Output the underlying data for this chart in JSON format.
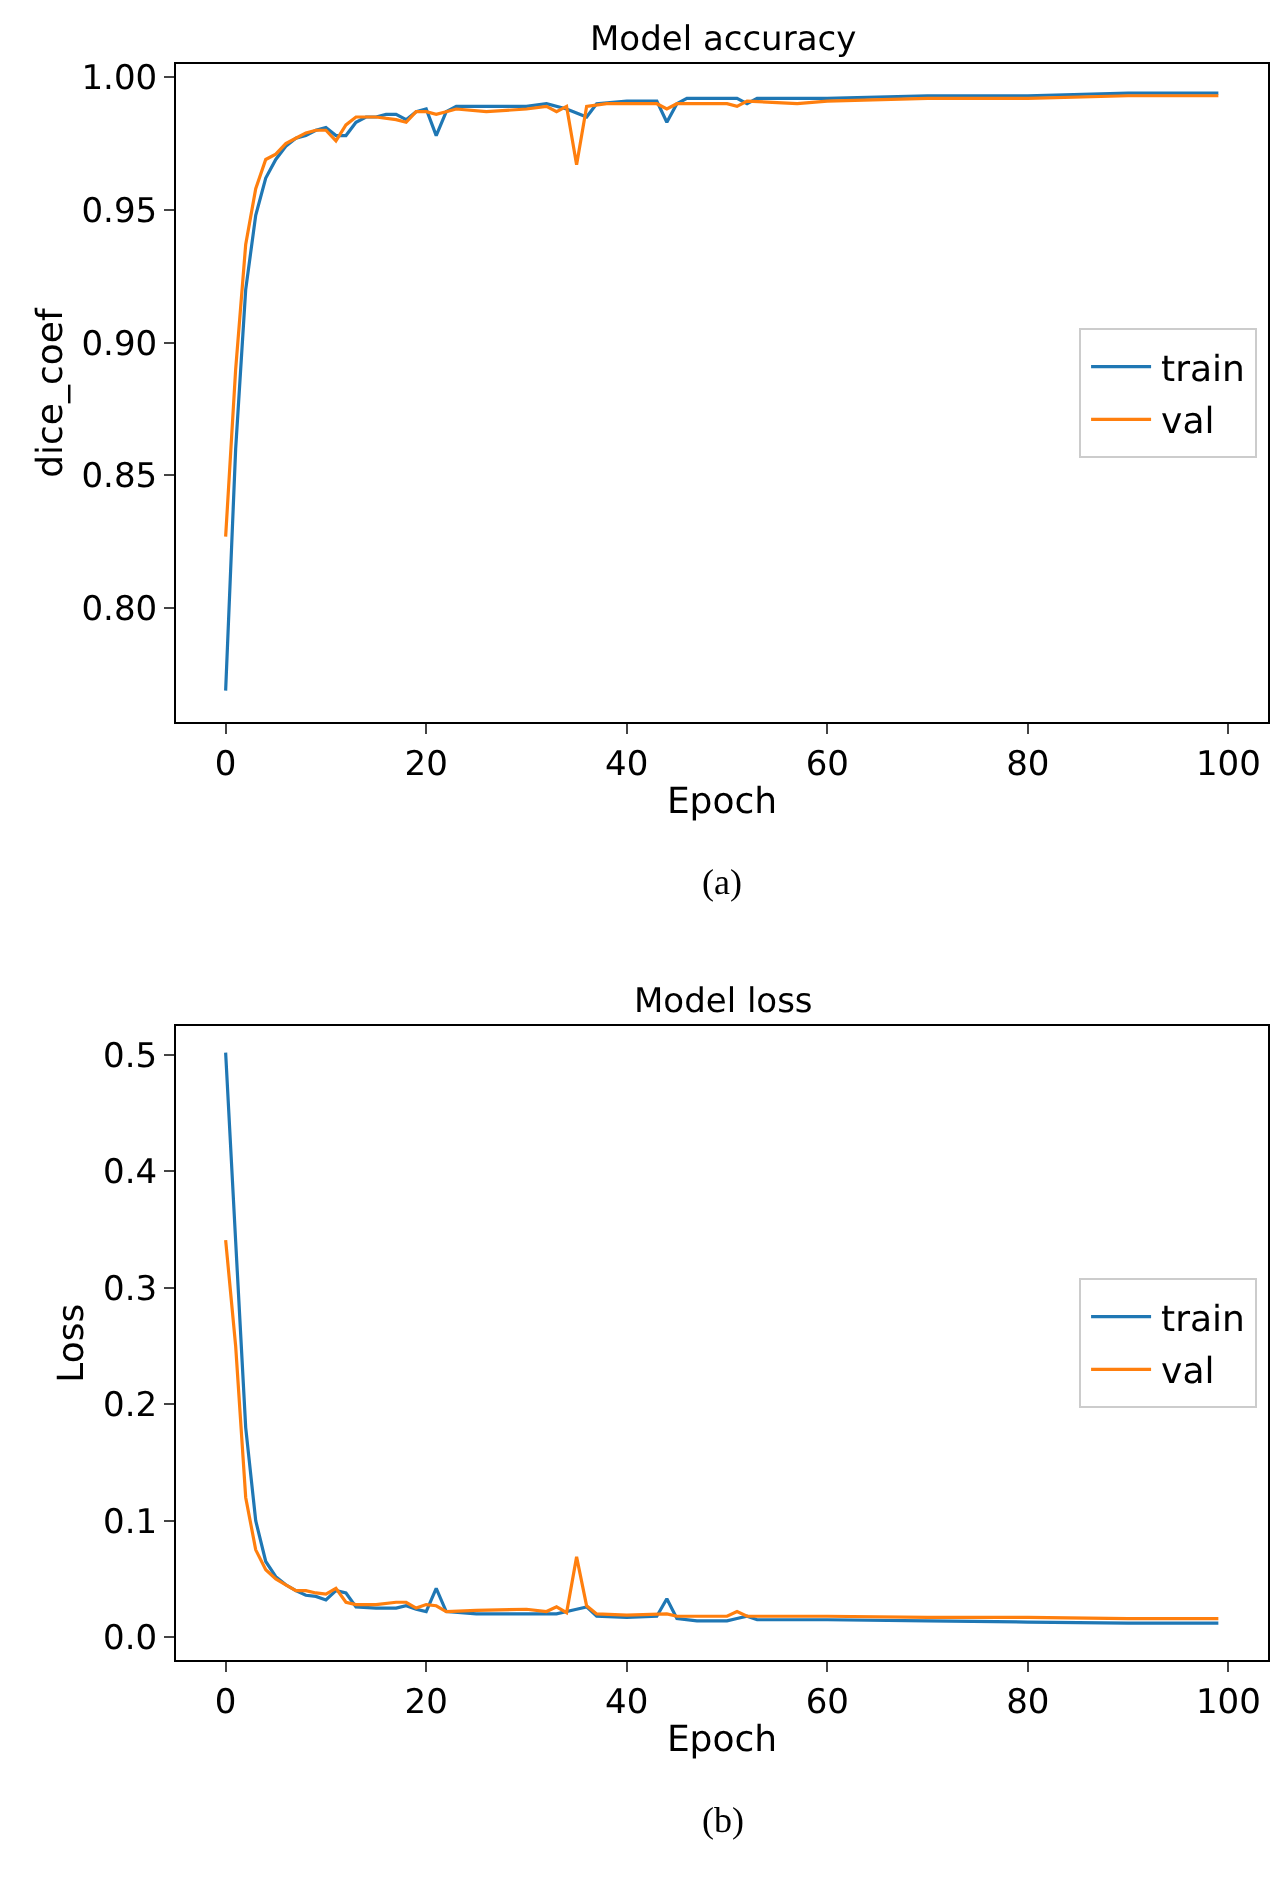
{
  "chart_data": [
    {
      "type": "line",
      "title": "Model accuracy",
      "xlabel": "Epoch",
      "ylabel": "dice_coef",
      "annotations": [
        "(a)"
      ],
      "xlim": [
        -4.95,
        103.95
      ],
      "ylim": [
        0.757,
        1.005
      ],
      "xticks": [
        0,
        20,
        40,
        60,
        80,
        100
      ],
      "yticks": [
        {
          "value": 0.8,
          "label": "0.80"
        },
        {
          "value": 0.85,
          "label": "0.85"
        },
        {
          "value": 0.9,
          "label": "0.90"
        },
        {
          "value": 0.95,
          "label": "0.95"
        },
        {
          "value": 1.0,
          "label": "1.00"
        }
      ],
      "legend": "right",
      "series": [
        {
          "name": "train",
          "color": "#1f77b4",
          "x": [
            0,
            1,
            2,
            3,
            4,
            5,
            6,
            7,
            8,
            9,
            10,
            11,
            12,
            13,
            14,
            15,
            16,
            17,
            18,
            19,
            20,
            21,
            22,
            23,
            26,
            30,
            32,
            34,
            36,
            37,
            40,
            43,
            44,
            45,
            46,
            50,
            51,
            52,
            53,
            60,
            70,
            80,
            90,
            99
          ],
          "values": [
            0.769,
            0.86,
            0.92,
            0.948,
            0.962,
            0.969,
            0.974,
            0.977,
            0.978,
            0.98,
            0.981,
            0.978,
            0.978,
            0.983,
            0.985,
            0.985,
            0.986,
            0.986,
            0.984,
            0.987,
            0.988,
            0.978,
            0.987,
            0.989,
            0.989,
            0.989,
            0.99,
            0.988,
            0.985,
            0.99,
            0.991,
            0.991,
            0.983,
            0.99,
            0.992,
            0.992,
            0.992,
            0.99,
            0.992,
            0.992,
            0.993,
            0.993,
            0.994,
            0.994
          ]
        },
        {
          "name": "val",
          "color": "#ff7f0e",
          "x": [
            0,
            1,
            2,
            3,
            4,
            5,
            6,
            7,
            8,
            9,
            10,
            11,
            12,
            13,
            15,
            17,
            18,
            19,
            20,
            21,
            22,
            23,
            26,
            30,
            32,
            33,
            34,
            35,
            36,
            38,
            43,
            44,
            45,
            50,
            51,
            52,
            57,
            60,
            70,
            80,
            90,
            99
          ],
          "values": [
            0.827,
            0.89,
            0.937,
            0.958,
            0.969,
            0.971,
            0.975,
            0.977,
            0.979,
            0.98,
            0.98,
            0.976,
            0.982,
            0.985,
            0.985,
            0.984,
            0.983,
            0.987,
            0.987,
            0.986,
            0.987,
            0.988,
            0.987,
            0.988,
            0.989,
            0.987,
            0.989,
            0.967,
            0.989,
            0.99,
            0.99,
            0.988,
            0.99,
            0.99,
            0.989,
            0.991,
            0.99,
            0.991,
            0.992,
            0.992,
            0.993,
            0.993
          ]
        }
      ]
    },
    {
      "type": "line",
      "title": "Model loss",
      "xlabel": "Epoch",
      "ylabel": "Loss",
      "annotations": [
        "(b)"
      ],
      "xlim": [
        -4.95,
        103.95
      ],
      "ylim": [
        -0.02,
        0.525
      ],
      "xticks": [
        0,
        20,
        40,
        60,
        80,
        100
      ],
      "yticks": [
        {
          "value": 0,
          "label": "0.0"
        },
        0.1,
        0.2,
        0.3,
        0.4,
        0.5
      ],
      "legend": "right",
      "series": [
        {
          "name": "train",
          "color": "#1f77b4",
          "x": [
            0,
            1,
            2,
            3,
            4,
            5,
            6,
            7,
            8,
            9,
            10,
            11,
            12,
            13,
            15,
            17,
            18,
            19,
            20,
            21,
            22,
            25,
            30,
            33,
            35,
            36,
            37,
            40,
            43,
            44,
            45,
            47,
            50,
            51,
            52,
            53,
            60,
            70,
            80,
            90,
            99
          ],
          "values": [
            0.502,
            0.34,
            0.18,
            0.1,
            0.065,
            0.052,
            0.045,
            0.04,
            0.036,
            0.035,
            0.032,
            0.04,
            0.038,
            0.026,
            0.025,
            0.025,
            0.027,
            0.024,
            0.022,
            0.042,
            0.022,
            0.02,
            0.02,
            0.02,
            0.024,
            0.026,
            0.018,
            0.017,
            0.018,
            0.033,
            0.016,
            0.014,
            0.014,
            0.016,
            0.018,
            0.015,
            0.015,
            0.014,
            0.013,
            0.012,
            0.012
          ]
        },
        {
          "name": "val",
          "color": "#ff7f0e",
          "x": [
            0,
            1,
            2,
            3,
            4,
            5,
            6,
            7,
            8,
            9,
            10,
            11,
            12,
            13,
            15,
            17,
            18,
            19,
            20,
            21,
            22,
            25,
            30,
            32,
            33,
            34,
            35,
            36,
            37,
            40,
            44,
            45,
            50,
            51,
            52,
            60,
            70,
            80,
            90,
            99
          ],
          "values": [
            0.341,
            0.25,
            0.12,
            0.075,
            0.058,
            0.05,
            0.045,
            0.04,
            0.04,
            0.038,
            0.037,
            0.042,
            0.03,
            0.028,
            0.028,
            0.03,
            0.03,
            0.025,
            0.028,
            0.027,
            0.022,
            0.023,
            0.024,
            0.022,
            0.026,
            0.021,
            0.069,
            0.027,
            0.02,
            0.019,
            0.02,
            0.018,
            0.018,
            0.022,
            0.018,
            0.018,
            0.017,
            0.017,
            0.016,
            0.016
          ]
        }
      ]
    }
  ]
}
